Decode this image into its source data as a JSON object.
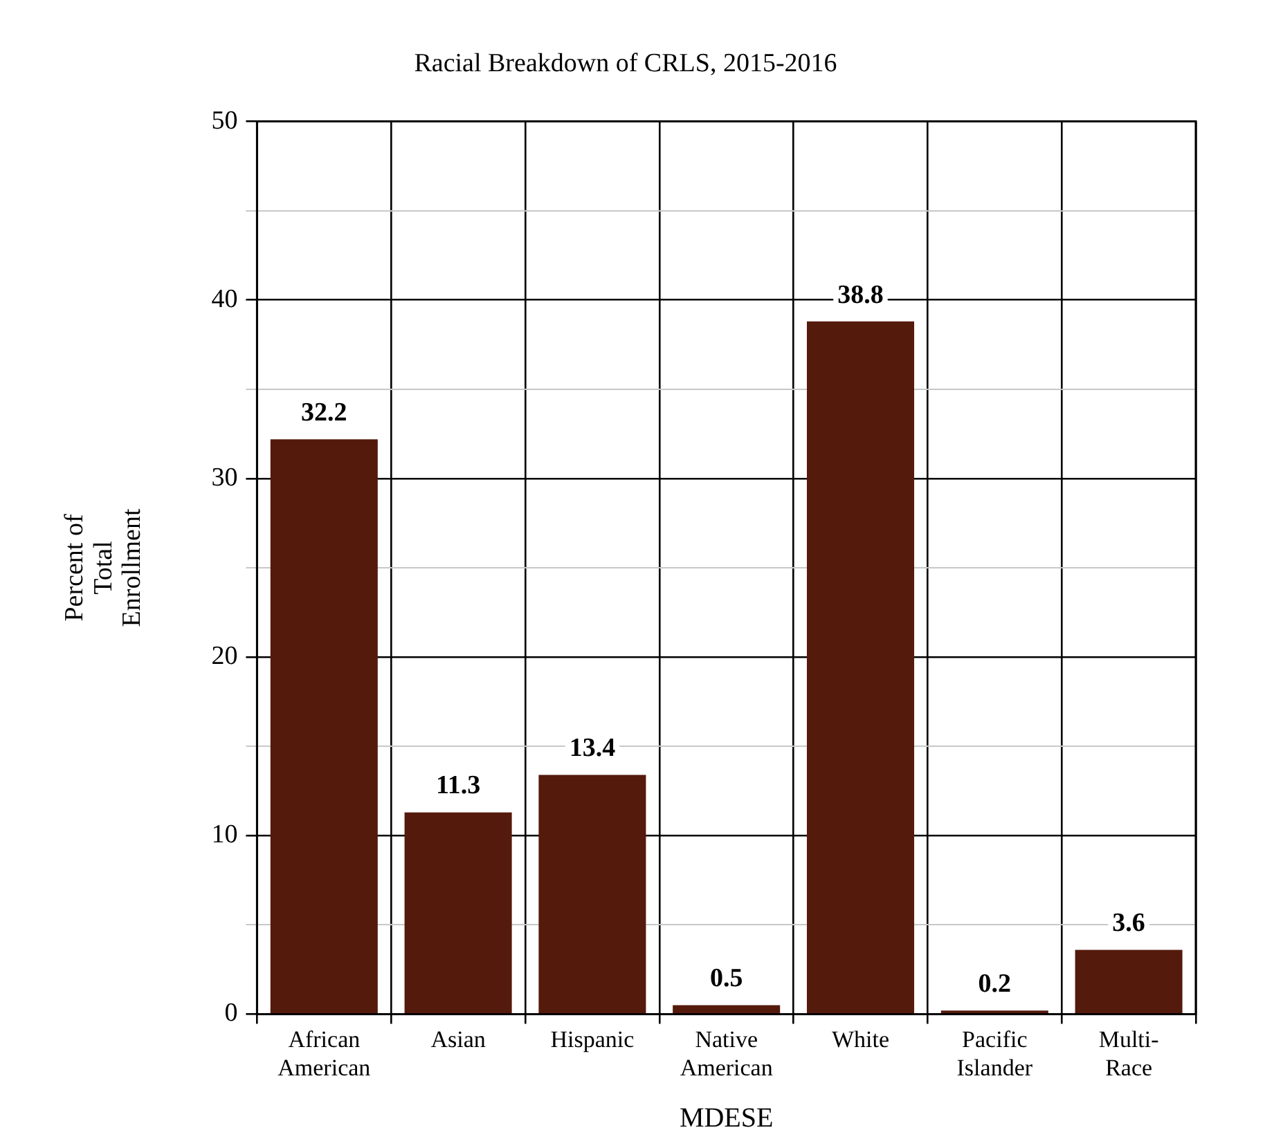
{
  "chart_data": {
    "type": "bar",
    "title": "Racial Breakdown of CRLS, 2015-2016",
    "xlabel": "MDESE",
    "ylabel": "Percent of Total Enrollment",
    "categories": [
      "African American",
      "Asian",
      "Hispanic",
      "Native American",
      "White",
      "Pacific Islander",
      "Multi-Race"
    ],
    "values": [
      32.2,
      11.3,
      13.4,
      0.5,
      38.8,
      0.2,
      3.6
    ],
    "color": "#541a0c",
    "ylim": [
      0,
      50
    ],
    "yticks": [
      0,
      {
        "value": 5,
        "label": null
      },
      10,
      {
        "value": 15,
        "label": null
      },
      20,
      {
        "value": 25,
        "label": null
      },
      30,
      {
        "value": 35,
        "label": null
      },
      40,
      {
        "value": 45,
        "label": null
      },
      50
    ],
    "grid": true,
    "data_labels": true
  }
}
